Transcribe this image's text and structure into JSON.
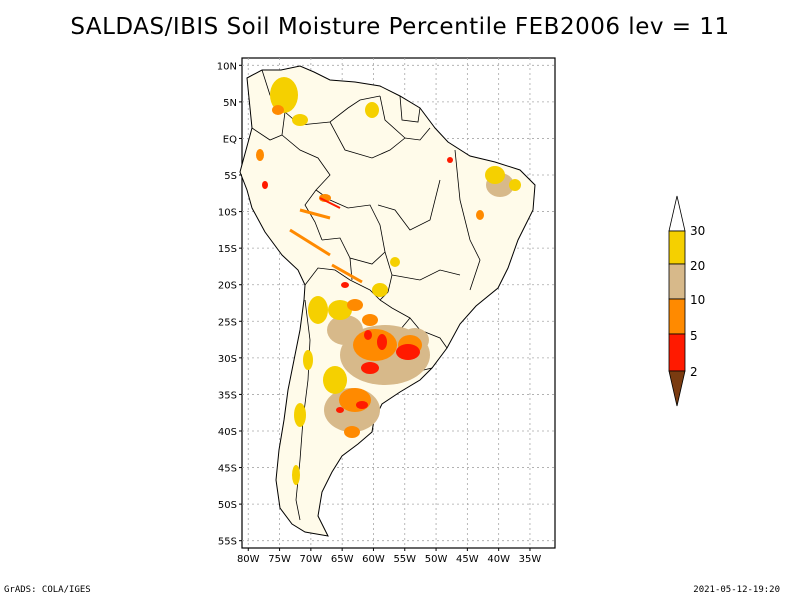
{
  "title": "SALDAS/IBIS Soil Moisture Percentile FEB2006 lev = 11",
  "footer": {
    "left": "GrADS: COLA/IGES",
    "right": "2021-05-12-19:20"
  },
  "map": {
    "region": "South America",
    "lat_ticks": [
      "10N",
      "5N",
      "EQ",
      "5S",
      "10S",
      "15S",
      "20S",
      "25S",
      "30S",
      "35S",
      "40S",
      "45S",
      "50S",
      "55S"
    ],
    "lon_ticks": [
      "80W",
      "75W",
      "70W",
      "65W",
      "60W",
      "55W",
      "50W",
      "45W",
      "40W",
      "35W"
    ],
    "lon_range": [
      -81,
      -31
    ],
    "lat_range": [
      -56,
      11
    ],
    "grid": true,
    "land_fill": "#fffbea"
  },
  "legend": {
    "labels": [
      "30",
      "20",
      "10",
      "5",
      "2"
    ],
    "colors": {
      "above_30": "#ffffff",
      "20_30": "#f5d000",
      "10_20": "#d7b98a",
      "5_10": "#ff8a00",
      "2_5": "#ff1a00",
      "below_2": "#7a3b10"
    }
  }
}
